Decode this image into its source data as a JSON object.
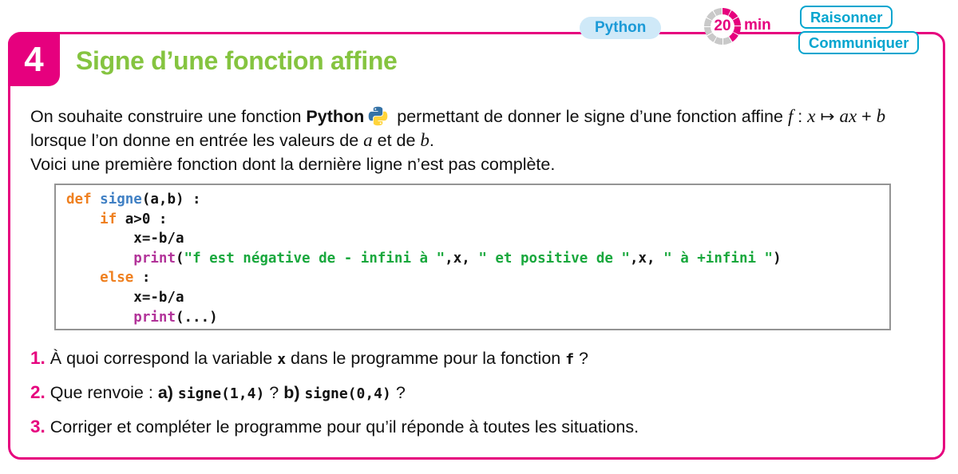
{
  "badges": {
    "python": "Python",
    "timer_value": "20",
    "timer_unit": "min",
    "skills": [
      "Raisonner",
      "Communiquer"
    ]
  },
  "header": {
    "number": "4",
    "title": "Signe d’une fonction affine"
  },
  "intro": {
    "line1a": [
      {
        "t": "On souhaite construire une fonction ",
        "s": "p"
      },
      {
        "t": "Python",
        "s": "b"
      }
    ],
    "line1b": [
      {
        "t": " permettant de donner le signe d’une fonction affine ",
        "s": "p"
      },
      {
        "t": "f",
        "s": "m"
      },
      {
        "t": " : ",
        "s": "p"
      },
      {
        "t": "x",
        "s": "m"
      },
      {
        "t": " ↦ ",
        "s": "p"
      },
      {
        "t": "ax",
        "s": "m"
      },
      {
        "t": " + ",
        "s": "p"
      },
      {
        "t": "b",
        "s": "m"
      }
    ],
    "line2": [
      {
        "t": "lorsque l’on donne en entrée les valeurs de ",
        "s": "p"
      },
      {
        "t": "a",
        "s": "m"
      },
      {
        "t": " et de ",
        "s": "p"
      },
      {
        "t": "b",
        "s": "m"
      },
      {
        "t": ".",
        "s": "p"
      }
    ],
    "line3": [
      {
        "t": "Voici une première fonction dont la dernière ligne n’est pas complète.",
        "s": "p"
      }
    ]
  },
  "code": {
    "lines": [
      {
        "tokens": [
          {
            "t": "def",
            "s": "kw"
          },
          {
            "t": " ",
            "s": "p"
          },
          {
            "t": "signe",
            "s": "fn"
          },
          {
            "t": "(a,b) :",
            "s": "p"
          }
        ]
      },
      {
        "tokens": [
          {
            "t": "    ",
            "s": "p"
          },
          {
            "t": "if",
            "s": "kw"
          },
          {
            "t": " a>0 :",
            "s": "p"
          }
        ]
      },
      {
        "tokens": [
          {
            "t": "        x=-b/a",
            "s": "p"
          }
        ]
      },
      {
        "tokens": [
          {
            "t": "        ",
            "s": "p"
          },
          {
            "t": "print",
            "s": "pr"
          },
          {
            "t": "(",
            "s": "p"
          },
          {
            "t": "\"f est négative de - infini à \"",
            "s": "str"
          },
          {
            "t": ",x, ",
            "s": "p"
          },
          {
            "t": "\" et positive de \"",
            "s": "str"
          },
          {
            "t": ",x, ",
            "s": "p"
          },
          {
            "t": "\" à +infini \"",
            "s": "str"
          },
          {
            "t": ")",
            "s": "p"
          }
        ]
      },
      {
        "tokens": [
          {
            "t": "    ",
            "s": "p"
          },
          {
            "t": "else",
            "s": "kw"
          },
          {
            "t": " :",
            "s": "p"
          }
        ]
      },
      {
        "tokens": [
          {
            "t": "        x=-b/a",
            "s": "p"
          }
        ]
      },
      {
        "tokens": [
          {
            "t": "        ",
            "s": "p"
          },
          {
            "t": "print",
            "s": "pr"
          },
          {
            "t": "(...)",
            "s": "p"
          }
        ]
      }
    ]
  },
  "questions": [
    {
      "num": "1.",
      "segments": [
        {
          "t": "À quoi correspond la variable ",
          "s": "p"
        },
        {
          "t": "x",
          "s": "mono"
        },
        {
          "t": "  dans le programme pour la fonction ",
          "s": "p"
        },
        {
          "t": "f",
          "s": "mono"
        },
        {
          "t": " ?",
          "s": "p"
        }
      ]
    },
    {
      "num": "2.",
      "segments": [
        {
          "t": "Que renvoie : ",
          "s": "p"
        },
        {
          "t": "a) ",
          "s": "b"
        },
        {
          "t": "signe(1,4)",
          "s": "mono"
        },
        {
          "t": " ?   ",
          "s": "p"
        },
        {
          "t": "b) ",
          "s": "b"
        },
        {
          "t": "signe(0,4)",
          "s": "mono"
        },
        {
          "t": " ?",
          "s": "p"
        }
      ]
    },
    {
      "num": "3.",
      "segments": [
        {
          "t": "Corriger et compléter le programme pour qu’il réponde à toutes les situations.",
          "s": "p"
        }
      ]
    }
  ]
}
